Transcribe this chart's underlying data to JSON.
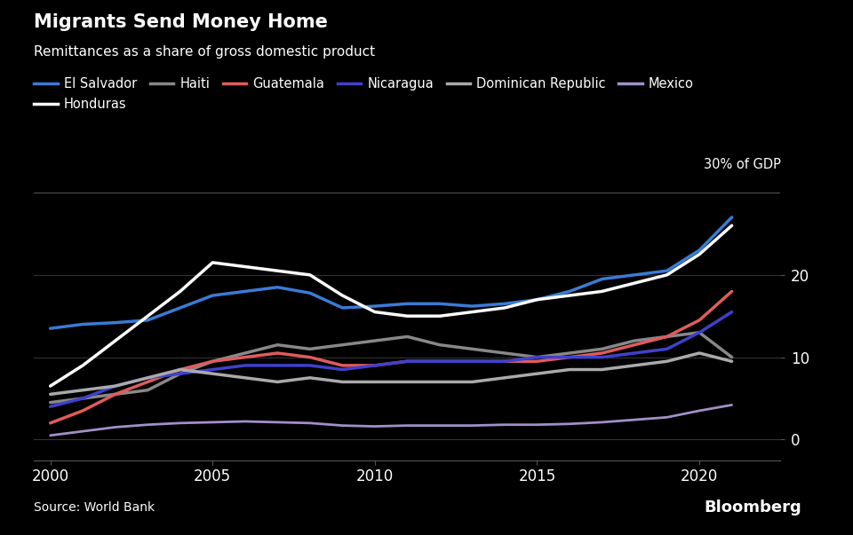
{
  "title": "Migrants Send Money Home",
  "subtitle": "Remittances as a share of gross domestic product",
  "source": "Source: World Bank",
  "gdp_label": "30% of GDP",
  "background_color": "#000000",
  "text_color": "#ffffff",
  "grid_color": "#333333",
  "years": [
    2000,
    2001,
    2002,
    2003,
    2004,
    2005,
    2006,
    2007,
    2008,
    2009,
    2010,
    2011,
    2012,
    2013,
    2014,
    2015,
    2016,
    2017,
    2018,
    2019,
    2020,
    2021
  ],
  "series": [
    {
      "name": "El Salvador",
      "color": "#3a7bd5",
      "linewidth": 2.5,
      "values": [
        13.5,
        14.0,
        14.2,
        14.5,
        16.0,
        17.5,
        18.0,
        18.5,
        17.8,
        16.0,
        16.2,
        16.5,
        16.5,
        16.2,
        16.5,
        17.0,
        18.0,
        19.5,
        20.0,
        20.5,
        23.0,
        27.0
      ]
    },
    {
      "name": "Honduras",
      "color": "#ffffff",
      "linewidth": 2.5,
      "values": [
        6.5,
        9.0,
        12.0,
        15.0,
        18.0,
        21.5,
        21.0,
        20.5,
        20.0,
        17.5,
        15.5,
        15.0,
        15.0,
        15.5,
        16.0,
        17.0,
        17.5,
        18.0,
        19.0,
        20.0,
        22.5,
        26.0
      ]
    },
    {
      "name": "Haiti",
      "color": "#888888",
      "linewidth": 2.5,
      "values": [
        4.5,
        5.0,
        5.5,
        6.0,
        8.0,
        9.5,
        10.5,
        11.5,
        11.0,
        11.5,
        12.0,
        12.5,
        11.5,
        11.0,
        10.5,
        10.0,
        10.5,
        11.0,
        12.0,
        12.5,
        13.0,
        10.0
      ]
    },
    {
      "name": "Guatemala",
      "color": "#e05c5c",
      "linewidth": 2.5,
      "values": [
        2.0,
        3.5,
        5.5,
        7.0,
        8.5,
        9.5,
        10.0,
        10.5,
        10.0,
        9.0,
        9.0,
        9.5,
        9.5,
        9.5,
        9.5,
        9.5,
        10.0,
        10.5,
        11.5,
        12.5,
        14.5,
        18.0
      ]
    },
    {
      "name": "Nicaragua",
      "color": "#4040cc",
      "linewidth": 2.5,
      "values": [
        4.0,
        5.0,
        6.5,
        7.5,
        8.0,
        8.5,
        9.0,
        9.0,
        9.0,
        8.5,
        9.0,
        9.5,
        9.5,
        9.5,
        9.5,
        10.0,
        10.0,
        10.0,
        10.5,
        11.0,
        13.0,
        15.5
      ]
    },
    {
      "name": "Dominican Republic",
      "color": "#aaaaaa",
      "linewidth": 2.5,
      "values": [
        5.5,
        6.0,
        6.5,
        7.5,
        8.5,
        8.0,
        7.5,
        7.0,
        7.5,
        7.0,
        7.0,
        7.0,
        7.0,
        7.0,
        7.5,
        8.0,
        8.5,
        8.5,
        9.0,
        9.5,
        10.5,
        9.5
      ]
    },
    {
      "name": "Mexico",
      "color": "#a090c8",
      "linewidth": 2.0,
      "values": [
        0.5,
        1.0,
        1.5,
        1.8,
        2.0,
        2.1,
        2.2,
        2.1,
        2.0,
        1.7,
        1.6,
        1.7,
        1.7,
        1.7,
        1.8,
        1.8,
        1.9,
        2.1,
        2.4,
        2.7,
        3.5,
        4.2
      ]
    }
  ],
  "yticks": [
    0,
    10,
    20
  ],
  "ylim": [
    -2.5,
    30
  ],
  "xlim": [
    1999.5,
    2022.5
  ],
  "xticks": [
    2000,
    2005,
    2010,
    2015,
    2020
  ],
  "bloomberg_color": "#0055a5"
}
